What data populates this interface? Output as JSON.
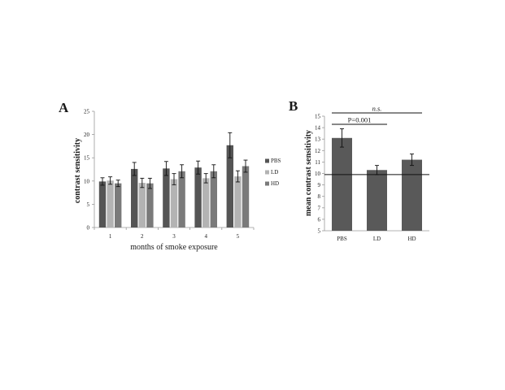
{
  "figure": {
    "panel_a_label": "A",
    "panel_b_label": "B"
  },
  "chart_data": [
    {
      "panel": "A",
      "type": "bar",
      "ylabel": "contrast sensitivity",
      "xlabel": "months of smoke exposure",
      "ylim": [
        0,
        25
      ],
      "yticks": [
        0,
        5,
        10,
        15,
        20,
        25
      ],
      "categories": [
        "1",
        "2",
        "3",
        "4",
        "5"
      ],
      "legend_position": "right",
      "grid": false,
      "series": [
        {
          "name": "PBS",
          "color": "#555555",
          "values": [
            9.9,
            12.6,
            12.7,
            12.9,
            17.7
          ],
          "errors": [
            0.8,
            1.4,
            1.5,
            1.4,
            2.7
          ]
        },
        {
          "name": "LD",
          "color": "#b3b3b3",
          "values": [
            10.1,
            9.6,
            10.4,
            10.6,
            11.0
          ],
          "errors": [
            0.8,
            1.0,
            1.2,
            1.0,
            1.2
          ]
        },
        {
          "name": "HD",
          "color": "#7a7a7a",
          "values": [
            9.5,
            9.5,
            12.1,
            12.1,
            13.2
          ],
          "errors": [
            0.7,
            1.1,
            1.4,
            1.4,
            1.3
          ]
        }
      ]
    },
    {
      "panel": "B",
      "type": "bar",
      "ylabel": "mean contrast sensitivity",
      "xlabel": "",
      "ylim": [
        5,
        15
      ],
      "yticks": [
        5,
        6,
        7,
        8,
        9,
        10,
        11,
        12,
        13,
        14,
        15
      ],
      "categories": [
        "PBS",
        "LD",
        "HD"
      ],
      "grid": false,
      "color": "#595959",
      "values": [
        13.1,
        10.3,
        11.2
      ],
      "errors": [
        0.8,
        0.4,
        0.5
      ],
      "reference_line": 9.9,
      "annotations": [
        {
          "text": "n.s.",
          "from": "PBS",
          "to": "HD"
        },
        {
          "text": "P=0.001",
          "from": "PBS",
          "to": "LD"
        }
      ]
    }
  ]
}
